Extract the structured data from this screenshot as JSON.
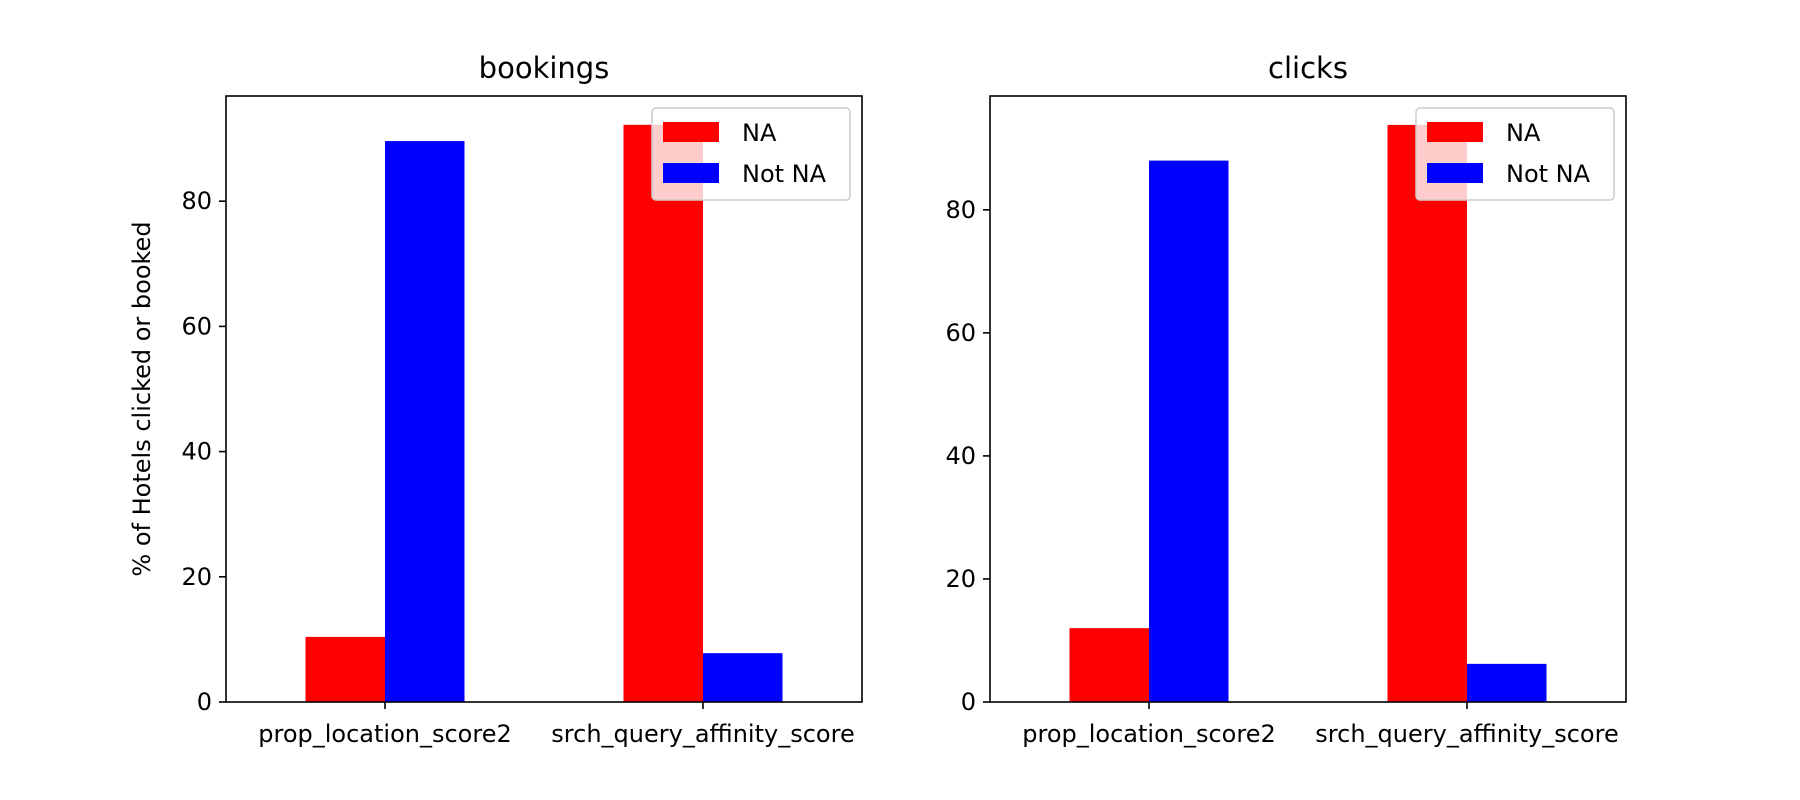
{
  "chart_data": [
    {
      "type": "bar",
      "title": "bookings",
      "xlabel": "",
      "ylabel": "% of Hotels clicked or booked",
      "categories": [
        "prop_location_score2",
        "srch_query_affinity_score"
      ],
      "series": [
        {
          "name": "NA",
          "color": "#ff0000",
          "values": [
            10.4,
            92.2
          ]
        },
        {
          "name": "Not NA",
          "color": "#0000ff",
          "values": [
            89.6,
            7.8
          ]
        }
      ],
      "ylim": [
        0,
        96.8
      ],
      "yticks": [
        0,
        20,
        40,
        60,
        80
      ],
      "legend": "top-right",
      "grid": false
    },
    {
      "type": "bar",
      "title": "clicks",
      "xlabel": "",
      "ylabel": "",
      "categories": [
        "prop_location_score2",
        "srch_query_affinity_score"
      ],
      "series": [
        {
          "name": "NA",
          "color": "#ff0000",
          "values": [
            12.0,
            93.8
          ]
        },
        {
          "name": "Not NA",
          "color": "#0000ff",
          "values": [
            88.0,
            6.2
          ]
        }
      ],
      "ylim": [
        0,
        98.5
      ],
      "yticks": [
        0,
        20,
        40,
        60,
        80
      ],
      "legend": "top-right",
      "grid": false
    }
  ]
}
